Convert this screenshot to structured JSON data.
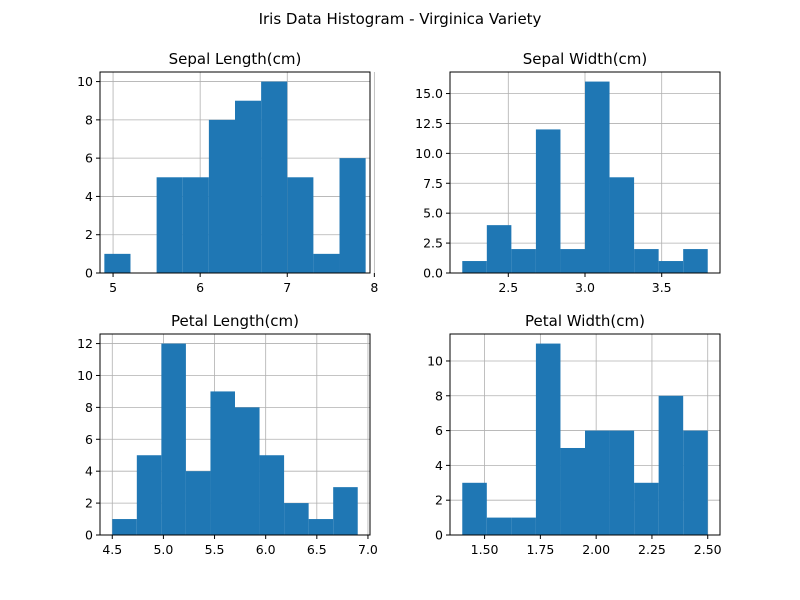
{
  "chart_data": {
    "title": "Iris Data Histogram - Virginica Variety",
    "color": "#1f77b4",
    "grid": true,
    "panels": [
      {
        "type": "bar",
        "title": "Sepal Length(cm)",
        "bins": [
          [
            4.9,
            5.2,
            1
          ],
          [
            5.2,
            5.5,
            0
          ],
          [
            5.5,
            5.8,
            5
          ],
          [
            5.8,
            6.1,
            5
          ],
          [
            6.1,
            6.4,
            8
          ],
          [
            6.4,
            6.7,
            9
          ],
          [
            6.7,
            7.0,
            10
          ],
          [
            7.0,
            7.3,
            5
          ],
          [
            7.3,
            7.6,
            1
          ],
          [
            7.6,
            7.9,
            6
          ]
        ],
        "xlim": [
          4.85,
          7.95
        ],
        "ylim": [
          0,
          10.5
        ],
        "xticks": [
          5,
          6,
          7,
          8
        ],
        "xtick_labels": [
          "5",
          "6",
          "7",
          "8"
        ],
        "yticks": [
          0,
          2,
          4,
          6,
          8,
          10
        ],
        "ytick_labels": [
          "0",
          "2",
          "4",
          "6",
          "8",
          "10"
        ]
      },
      {
        "type": "bar",
        "title": "Sepal Width(cm)",
        "bins": [
          [
            2.2,
            2.36,
            1
          ],
          [
            2.36,
            2.52,
            4
          ],
          [
            2.52,
            2.68,
            2
          ],
          [
            2.68,
            2.84,
            12
          ],
          [
            2.84,
            3.0,
            2
          ],
          [
            3.0,
            3.16,
            16
          ],
          [
            3.16,
            3.32,
            8
          ],
          [
            3.32,
            3.48,
            2
          ],
          [
            3.48,
            3.64,
            1
          ],
          [
            3.64,
            3.8,
            2
          ]
        ],
        "xlim": [
          2.12,
          3.88
        ],
        "ylim": [
          0,
          16.8
        ],
        "xticks": [
          2.5,
          3.0,
          3.5
        ],
        "xtick_labels": [
          "2.5",
          "3.0",
          "3.5"
        ],
        "yticks": [
          0,
          2.5,
          5,
          7.5,
          10,
          12.5,
          15
        ],
        "ytick_labels": [
          "0.0",
          "2.5",
          "5.0",
          "7.5",
          "10.0",
          "12.5",
          "15.0"
        ]
      },
      {
        "type": "bar",
        "title": "Petal Length(cm)",
        "bins": [
          [
            4.5,
            4.74,
            1
          ],
          [
            4.74,
            4.98,
            5
          ],
          [
            4.98,
            5.22,
            12
          ],
          [
            5.22,
            5.46,
            4
          ],
          [
            5.46,
            5.7,
            9
          ],
          [
            5.7,
            5.94,
            8
          ],
          [
            5.94,
            6.18,
            5
          ],
          [
            6.18,
            6.42,
            2
          ],
          [
            6.42,
            6.66,
            1
          ],
          [
            6.66,
            6.9,
            3
          ]
        ],
        "xlim": [
          4.38,
          7.02
        ],
        "ylim": [
          0,
          12.6
        ],
        "xticks": [
          4.5,
          5.0,
          5.5,
          6.0,
          6.5,
          7.0
        ],
        "xtick_labels": [
          "4.5",
          "5.0",
          "5.5",
          "6.0",
          "6.5",
          "7.0"
        ],
        "yticks": [
          0,
          2,
          4,
          6,
          8,
          10,
          12
        ],
        "ytick_labels": [
          "0",
          "2",
          "4",
          "6",
          "8",
          "10",
          "12"
        ]
      },
      {
        "type": "bar",
        "title": "Petal Width(cm)",
        "bins": [
          [
            1.4,
            1.51,
            3
          ],
          [
            1.51,
            1.62,
            1
          ],
          [
            1.62,
            1.73,
            1
          ],
          [
            1.73,
            1.84,
            11
          ],
          [
            1.84,
            1.95,
            5
          ],
          [
            1.95,
            2.06,
            6
          ],
          [
            2.06,
            2.17,
            6
          ],
          [
            2.17,
            2.28,
            3
          ],
          [
            2.28,
            2.39,
            8
          ],
          [
            2.39,
            2.5,
            6
          ]
        ],
        "xlim": [
          1.345,
          2.555
        ],
        "ylim": [
          0,
          11.55
        ],
        "xticks": [
          1.5,
          1.75,
          2.0,
          2.25,
          2.5
        ],
        "xtick_labels": [
          "1.50",
          "1.75",
          "2.00",
          "2.25",
          "2.50"
        ],
        "yticks": [
          0,
          2,
          4,
          6,
          8,
          10
        ],
        "ytick_labels": [
          "0",
          "2",
          "4",
          "6",
          "8",
          "10"
        ]
      }
    ]
  }
}
